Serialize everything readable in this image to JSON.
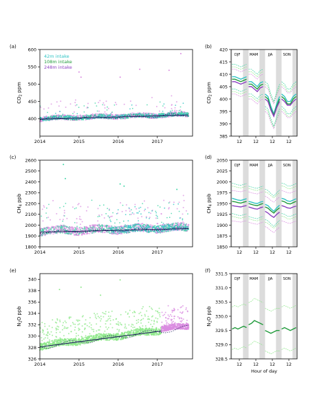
{
  "colors": {
    "42m": "#2ec4c4",
    "108m": "#1f9a3a",
    "248m": "#8a3fc0",
    "cloud_48m": "#3fd6a6",
    "cloud_248m": "#d98be0",
    "cloud_108m": "#8ee88a",
    "trend": "#1a1a5a",
    "shade": "#d0d0d0"
  },
  "chart_data": [
    {
      "id": "a",
      "panel_label": "(a)",
      "type": "scatter",
      "ylabel": "CO2 ppm",
      "ylabel_main": "CO",
      "ylabel_sub": "2",
      "ylabel_unit": " ppm",
      "ylim": [
        350,
        600
      ],
      "yticks": [
        400,
        450,
        500,
        550,
        600
      ],
      "xlim": [
        2014.0,
        2017.9
      ],
      "xticks": [
        2014,
        2015,
        2016,
        2017
      ],
      "grid": false,
      "legend_position": "top-left",
      "legend": [
        "42m intake",
        "108m intake",
        "248m intake"
      ],
      "series": [
        {
          "name": "42m intake",
          "baseline": [
            [
              2014.0,
              406
            ],
            [
              2014.5,
              400
            ],
            [
              2015.0,
              404
            ],
            [
              2015.5,
              401
            ],
            [
              2016.0,
              408
            ],
            [
              2016.5,
              403
            ],
            [
              2017.0,
              411
            ],
            [
              2017.5,
              406
            ],
            [
              2017.8,
              410
            ]
          ]
        },
        {
          "name": "108m intake",
          "baseline": [
            [
              2014.0,
              405
            ],
            [
              2014.5,
              399
            ],
            [
              2015.0,
              403
            ],
            [
              2015.5,
              400
            ],
            [
              2016.0,
              407
            ],
            [
              2016.5,
              402
            ],
            [
              2017.0,
              410
            ],
            [
              2017.5,
              405
            ],
            [
              2017.8,
              409
            ]
          ]
        },
        {
          "name": "248m intake",
          "baseline": [
            [
              2014.0,
              404
            ],
            [
              2014.5,
              398
            ],
            [
              2015.0,
              402
            ],
            [
              2015.5,
              399
            ],
            [
              2016.0,
              406
            ],
            [
              2016.5,
              401
            ],
            [
              2017.0,
              409
            ],
            [
              2017.5,
              404
            ],
            [
              2017.8,
              408
            ]
          ]
        }
      ],
      "trend": [
        [
          2014.0,
          399
        ],
        [
          2017.8,
          411
        ]
      ]
    },
    {
      "id": "b",
      "panel_label": "(b)",
      "type": "line",
      "ylabel": "CO2 ppm",
      "ylabel_main": "CO",
      "ylabel_sub": "2",
      "ylabel_unit": " ppm",
      "ylim": [
        385,
        420
      ],
      "yticks": [
        385,
        390,
        395,
        400,
        405,
        410,
        415,
        420
      ],
      "seasons": [
        "DJF",
        "MAM",
        "JJA",
        "SON"
      ],
      "xticks": [
        "12",
        "12",
        "12",
        "12"
      ],
      "series": [
        {
          "name": "42m intake",
          "DJF": [
            409,
            409,
            408.5,
            408,
            408.5,
            409
          ],
          "MAM": [
            407,
            407,
            406,
            405,
            406.5,
            407
          ],
          "JJA": [
            402,
            401,
            397,
            394,
            398,
            401
          ],
          "SON": [
            402,
            401,
            399,
            399,
            401,
            402
          ]
        },
        {
          "name": "108m intake",
          "DJF": [
            408,
            408,
            407.5,
            407,
            407.5,
            408
          ],
          "MAM": [
            406,
            406,
            405,
            404,
            405.5,
            406
          ],
          "JJA": [
            401,
            400,
            396,
            393.5,
            397,
            400
          ],
          "SON": [
            401,
            400,
            398,
            398,
            400,
            401
          ]
        },
        {
          "name": "248m intake",
          "DJF": [
            407,
            407,
            406.5,
            406,
            406.5,
            407
          ],
          "MAM": [
            405,
            405,
            404,
            403,
            404.5,
            405
          ],
          "JJA": [
            400,
            399,
            395.5,
            393,
            396.5,
            399
          ],
          "SON": [
            400,
            399,
            397.5,
            397.5,
            399,
            400
          ]
        }
      ],
      "band": {
        "upper_offset": 5,
        "lower_offset": -5
      }
    },
    {
      "id": "c",
      "panel_label": "(c)",
      "type": "scatter",
      "ylabel": "CH4 ppb",
      "ylabel_main": "CH",
      "ylabel_sub": "4",
      "ylabel_unit": " ppb",
      "ylim": [
        1800,
        2600
      ],
      "yticks": [
        1800,
        1900,
        2000,
        2100,
        2200,
        2300,
        2400,
        2500,
        2600
      ],
      "xlim": [
        2014.0,
        2017.9
      ],
      "xticks": [
        2014,
        2015,
        2016,
        2017
      ],
      "grid": false,
      "trend": [
        [
          2014.0,
          1935
        ],
        [
          2017.8,
          1968
        ]
      ]
    },
    {
      "id": "d",
      "panel_label": "(d)",
      "type": "line",
      "ylabel": "CH4 ppb",
      "ylabel_main": "CH",
      "ylabel_sub": "4",
      "ylabel_unit": " ppb",
      "ylim": [
        1850,
        2050
      ],
      "yticks": [
        1850,
        1875,
        1900,
        1925,
        1950,
        1975,
        2000,
        2025,
        2050
      ],
      "seasons": [
        "DJF",
        "MAM",
        "JJA",
        "SON"
      ],
      "xticks": [
        "12",
        "12",
        "12",
        "12"
      ],
      "series": [
        {
          "name": "42m intake",
          "DJF": [
            1962,
            1960,
            1958,
            1957,
            1959,
            1961
          ],
          "MAM": [
            1955,
            1953,
            1951,
            1950,
            1953,
            1955
          ],
          "JJA": [
            1948,
            1945,
            1938,
            1932,
            1940,
            1946
          ],
          "SON": [
            1962,
            1960,
            1956,
            1955,
            1958,
            1961
          ]
        },
        {
          "name": "108m intake",
          "DJF": [
            1955,
            1954,
            1952,
            1951,
            1953,
            1955
          ],
          "MAM": [
            1950,
            1948,
            1946,
            1945,
            1948,
            1950
          ],
          "JJA": [
            1942,
            1939,
            1933,
            1928,
            1935,
            1940
          ],
          "SON": [
            1956,
            1954,
            1950,
            1949,
            1952,
            1955
          ]
        },
        {
          "name": "248m intake",
          "DJF": [
            1945,
            1944,
            1943,
            1942,
            1944,
            1945
          ],
          "MAM": [
            1942,
            1940,
            1938,
            1937,
            1940,
            1942
          ],
          "JJA": [
            1932,
            1928,
            1922,
            1918,
            1925,
            1930
          ],
          "SON": [
            1945,
            1943,
            1940,
            1939,
            1942,
            1944
          ]
        }
      ],
      "band": {
        "upper_offset": 35,
        "lower_offset": -35
      }
    },
    {
      "id": "e",
      "panel_label": "(e)",
      "type": "scatter",
      "ylabel": "N2O ppb",
      "ylabel_main": "N",
      "ylabel_sub": "2",
      "ylabel_unit": "O ppb",
      "ylim": [
        326,
        341
      ],
      "yticks": [
        326,
        328,
        330,
        332,
        334,
        336,
        338,
        340
      ],
      "xlim": [
        2014.0,
        2017.9
      ],
      "xticks": [
        2014,
        2015,
        2016,
        2017
      ],
      "grid": false,
      "trend": [
        [
          2014.0,
          328.1
        ],
        [
          2017.1,
          330.9
        ]
      ]
    },
    {
      "id": "f",
      "panel_label": "(f)",
      "type": "line",
      "ylabel": "N2O ppb",
      "ylabel_main": "N",
      "ylabel_sub": "2",
      "ylabel_unit": "O ppb",
      "ylim": [
        328.5,
        331.5
      ],
      "yticks": [
        328.5,
        329.0,
        329.5,
        330.0,
        330.5,
        331.0,
        331.5
      ],
      "seasons": [
        "DJF",
        "MAM",
        "JJA",
        "SON"
      ],
      "xticks": [
        "12",
        "12",
        "12",
        "12"
      ],
      "xlabel": "Hour of day",
      "series": [
        {
          "name": "108m intake",
          "DJF": [
            329.55,
            329.6,
            329.55,
            329.6,
            329.65,
            329.6
          ],
          "MAM": [
            329.7,
            329.75,
            329.85,
            329.8,
            329.75,
            329.7
          ],
          "JJA": [
            329.5,
            329.45,
            329.4,
            329.45,
            329.5,
            329.5
          ],
          "SON": [
            329.55,
            329.6,
            329.55,
            329.5,
            329.55,
            329.6
          ]
        }
      ],
      "band": {
        "upper_offset": 0.78,
        "lower_offset": -0.72
      }
    }
  ]
}
